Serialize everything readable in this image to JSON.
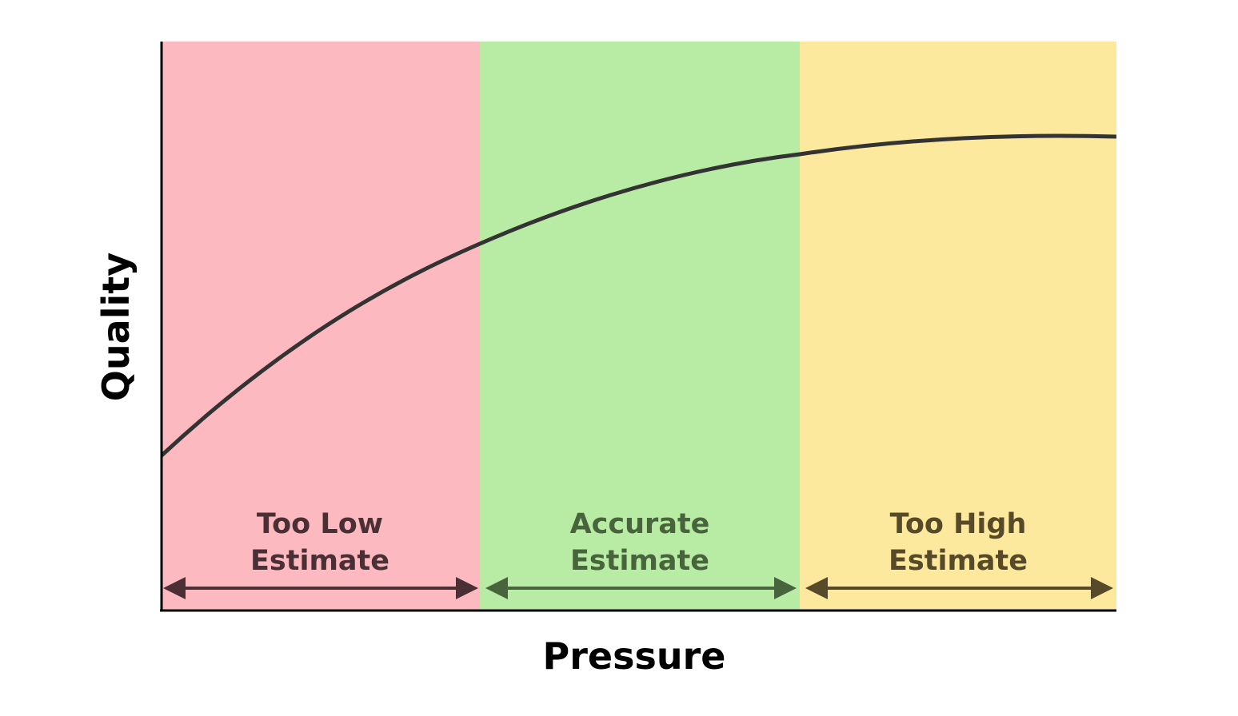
{
  "axes": {
    "x_label": "Pressure",
    "y_label": "Quality"
  },
  "zones": [
    {
      "id": "too-low",
      "line1": "Too Low",
      "line2": "Estimate",
      "fill": "#fcb9c0",
      "ink": "#4a3035"
    },
    {
      "id": "accurate",
      "line1": "Accurate",
      "line2": "Estimate",
      "fill": "#b8eca4",
      "ink": "#47643c"
    },
    {
      "id": "too-high",
      "line1": "Too High",
      "line2": "Estimate",
      "fill": "#fde99e",
      "ink": "#564a28"
    }
  ],
  "curve": {
    "shape": "concave increasing, saturating",
    "color": "#333333"
  },
  "axis_color": "#000000"
}
